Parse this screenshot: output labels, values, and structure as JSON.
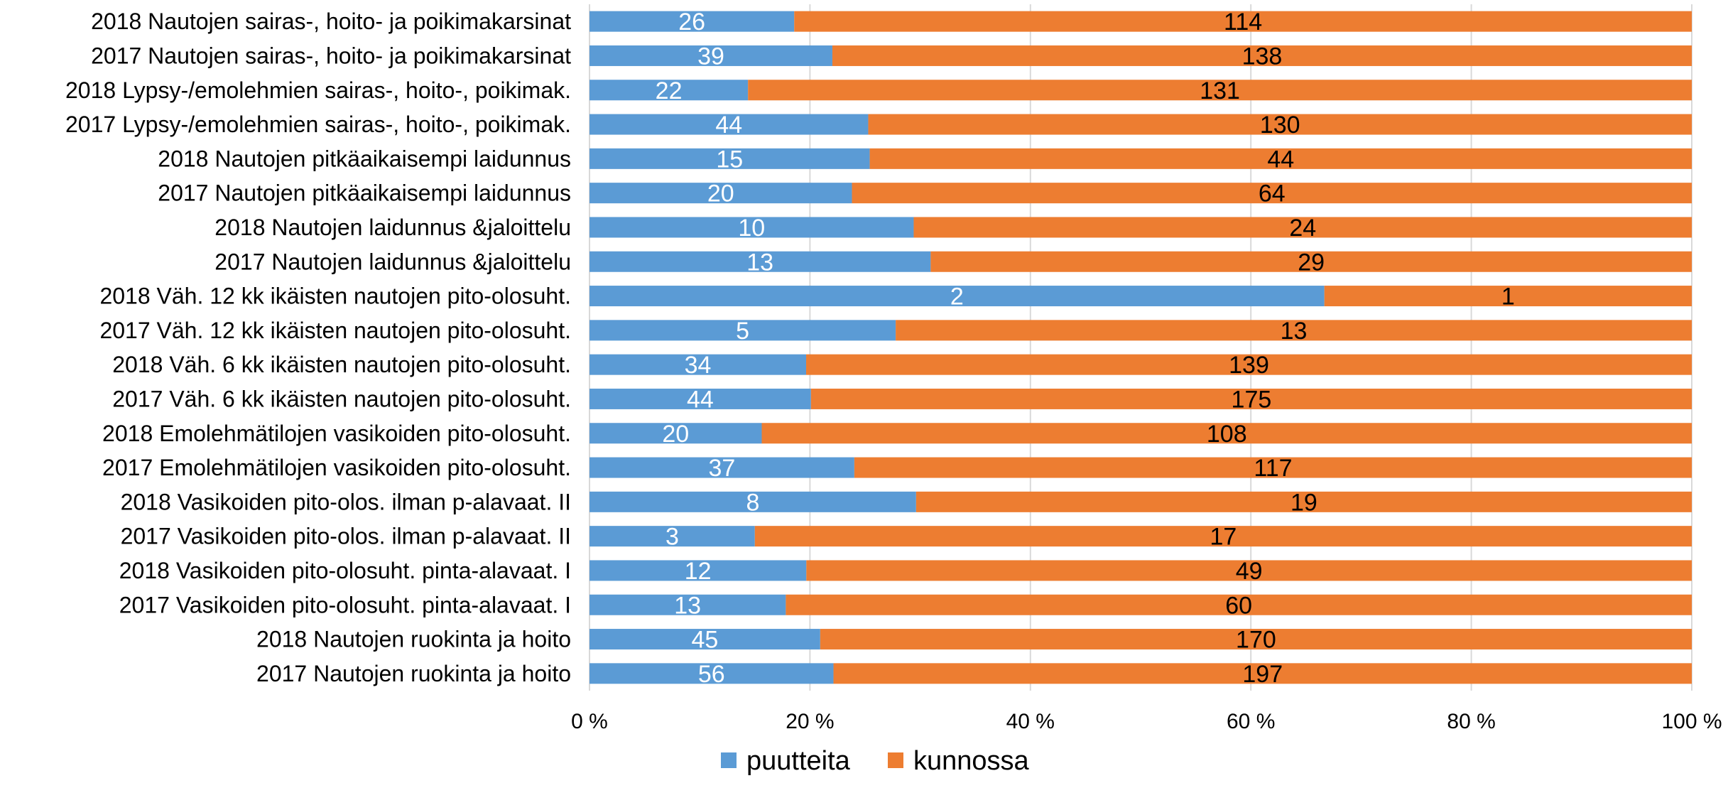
{
  "chart_data": {
    "type": "bar",
    "orientation": "horizontal",
    "stacking": "percent",
    "categories": [
      "2018 Nautojen sairas-, hoito- ja poikimakarsinat",
      "2017 Nautojen sairas-, hoito- ja poikimakarsinat",
      "2018 Lypsy-/emolehmien sairas-, hoito-, poikimak.",
      "2017 Lypsy-/emolehmien sairas-, hoito-, poikimak.",
      "2018 Nautojen pitkäaikaisempi laidunnus",
      "2017 Nautojen pitkäaikaisempi laidunnus",
      "2018 Nautojen laidunnus &jaloittelu",
      "2017 Nautojen laidunnus &jaloittelu",
      "2018 Väh. 12 kk ikäisten nautojen pito-olosuht.",
      "2017 Väh. 12 kk ikäisten nautojen pito-olosuht.",
      "2018 Väh. 6 kk ikäisten nautojen pito-olosuht.",
      "2017 Väh. 6 kk ikäisten nautojen pito-olosuht.",
      "2018 Emolehmätilojen vasikoiden pito-olosuht.",
      "2017 Emolehmätilojen vasikoiden pito-olosuht.",
      "2018 Vasikoiden pito-olos.  ilman p-alavaat. II",
      "2017 Vasikoiden pito-olos.  ilman p-alavaat. II",
      "2018 Vasikoiden pito-olosuht. pinta-alavaat. I",
      "2017 Vasikoiden pito-olosuht. pinta-alavaat. I",
      "2018 Nautojen ruokinta ja hoito",
      "2017 Nautojen ruokinta ja hoito"
    ],
    "series": [
      {
        "name": "puutteita",
        "color": "#5B9BD5",
        "label_color": "#ffffff",
        "values": [
          26,
          39,
          22,
          44,
          15,
          20,
          10,
          13,
          2,
          5,
          34,
          44,
          20,
          37,
          8,
          3,
          12,
          13,
          45,
          56
        ]
      },
      {
        "name": "kunnossa",
        "color": "#ED7D31",
        "label_color": "#000000",
        "values": [
          114,
          138,
          131,
          130,
          44,
          64,
          24,
          29,
          1,
          13,
          139,
          175,
          108,
          117,
          19,
          17,
          49,
          60,
          170,
          197
        ]
      }
    ],
    "x_ticks": [
      "0 %",
      "20 %",
      "40 %",
      "60 %",
      "80 %",
      "100 %"
    ],
    "xlim": [
      0,
      100
    ],
    "grid": true,
    "legend_position": "bottom"
  }
}
